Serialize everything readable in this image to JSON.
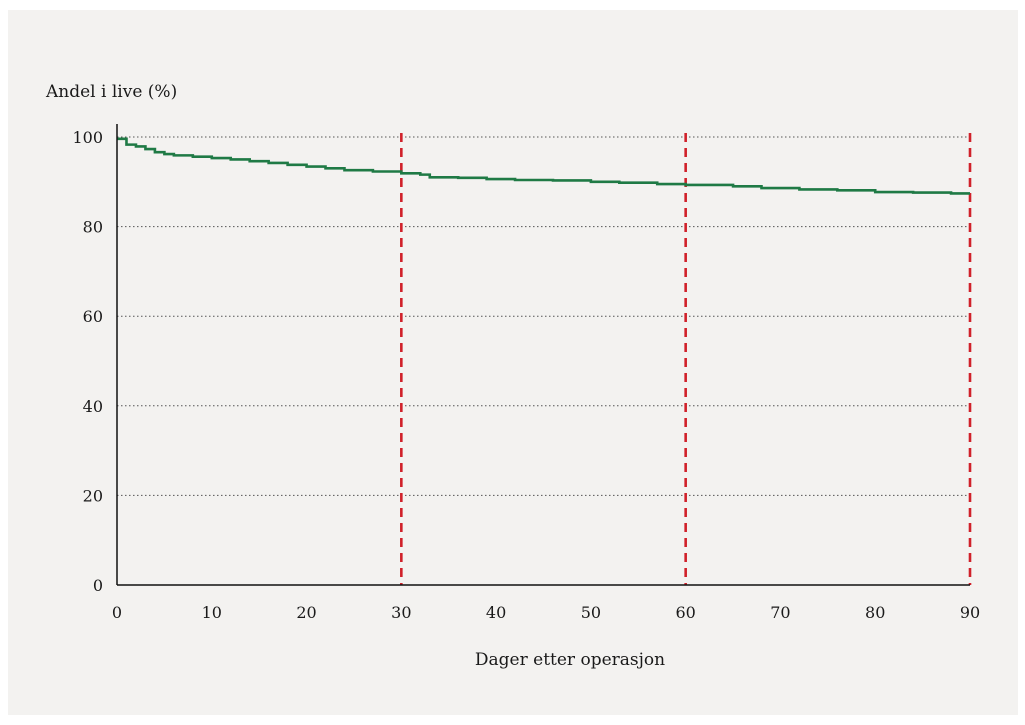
{
  "chart_data": {
    "type": "line",
    "title": "",
    "xlabel": "Dager etter operasjon",
    "ylabel": "Andel i live (%)",
    "xlim": [
      0,
      90
    ],
    "ylim": [
      0,
      100
    ],
    "x_ticks": [
      0,
      10,
      20,
      30,
      40,
      50,
      60,
      70,
      80,
      90
    ],
    "y_ticks": [
      0,
      20,
      40,
      60,
      80,
      100
    ],
    "grid": "horizontal dotted",
    "reference_lines_x": [
      30,
      60,
      90
    ],
    "colors": {
      "curve": "#1f7a45",
      "reference": "#d0212a",
      "grid": "#555555",
      "axis": "#111111"
    },
    "series": [
      {
        "style": "step",
        "x": [
          0,
          1,
          2,
          3,
          4,
          5,
          6,
          8,
          10,
          12,
          14,
          16,
          18,
          20,
          22,
          24,
          27,
          30,
          32,
          33,
          36,
          39,
          42,
          46,
          50,
          53,
          57,
          60,
          65,
          68,
          72,
          76,
          80,
          84,
          88,
          90
        ],
        "y": [
          99.6,
          98.3,
          97.9,
          97.3,
          96.6,
          96.2,
          95.9,
          95.6,
          95.3,
          95.0,
          94.6,
          94.2,
          93.8,
          93.4,
          93.0,
          92.6,
          92.3,
          91.9,
          91.6,
          91.0,
          90.9,
          90.6,
          90.4,
          90.3,
          90.0,
          89.8,
          89.5,
          89.3,
          89.0,
          88.6,
          88.3,
          88.1,
          87.7,
          87.6,
          87.4,
          87.4
        ]
      }
    ]
  }
}
